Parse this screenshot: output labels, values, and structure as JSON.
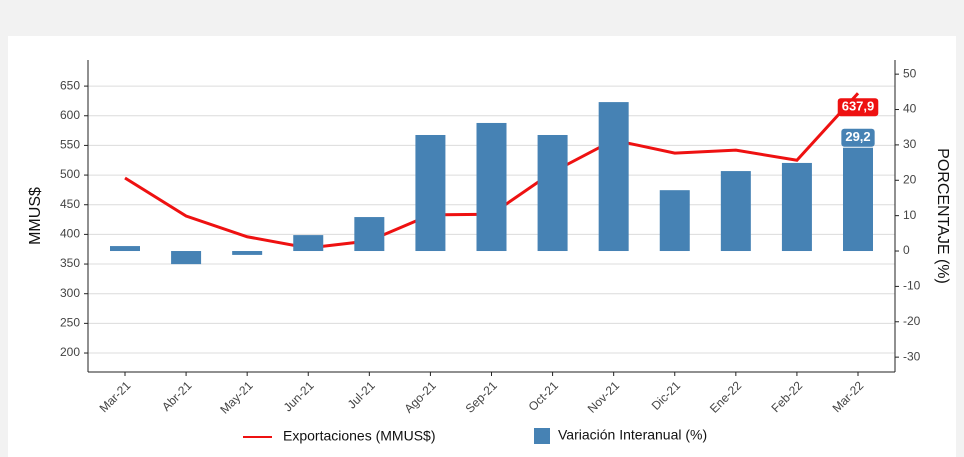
{
  "chart_data": {
    "type": "bar-line",
    "categories": [
      "Mar-21",
      "Abr-21",
      "May-21",
      "Jun-21",
      "Jul-21",
      "Ago-21",
      "Sep-21",
      "Oct-21",
      "Nov-21",
      "Dic-21",
      "Ene-22",
      "Feb-22",
      "Mar-22"
    ],
    "y_label": "MMUS$",
    "y2_label": "PORCENTAJE (%)",
    "series": [
      {
        "name": "Exportaciones (MMUS$)",
        "type": "line",
        "color": "#ee1111",
        "axis": "y",
        "values": [
          495,
          431,
          396,
          377,
          389,
          433,
          434,
          505,
          559,
          537,
          542,
          525,
          637.9
        ],
        "value_labels": [
          null,
          null,
          null,
          null,
          null,
          null,
          null,
          null,
          null,
          null,
          null,
          null,
          "637,9"
        ]
      },
      {
        "name": "Variación Interanual (%)",
        "type": "bar",
        "color": "#4682b4",
        "axis": "y2",
        "values": [
          1.4,
          -3.7,
          -1.1,
          4.5,
          9.6,
          32.8,
          36.2,
          32.8,
          42.1,
          17.2,
          22.6,
          24.9,
          29.2
        ],
        "value_labels": [
          null,
          null,
          null,
          null,
          null,
          null,
          null,
          null,
          null,
          null,
          null,
          null,
          "29,2"
        ]
      }
    ],
    "ylim": [
      168,
      694
    ],
    "yticks": [
      200,
      250,
      300,
      350,
      400,
      450,
      500,
      550,
      600,
      650
    ],
    "y2lim": [
      -34.2,
      54
    ],
    "y2ticks": [
      -30,
      -20,
      -10,
      0,
      10,
      20,
      30,
      40,
      50
    ],
    "grid": true,
    "legend": "bottom"
  }
}
